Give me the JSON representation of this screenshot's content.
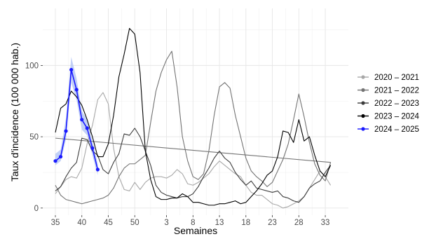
{
  "chart_data": {
    "type": "line",
    "xlabel": "Semaines",
    "ylabel": "Taux d'incidence (100 000 hab.)",
    "x_ticks": [
      "35",
      "40",
      "45",
      "50",
      "3",
      "8",
      "13",
      "18",
      "23",
      "28",
      "33"
    ],
    "y_ticks": [
      0,
      50,
      100
    ],
    "ylim": [
      -5,
      140
    ],
    "grid": true,
    "legend": "right",
    "series": [
      {
        "name": "2020 – 2021",
        "color": "#a8a8a8",
        "show_markers": false,
        "band": null,
        "values": [
          {
            "x": "35",
            "y": 10
          },
          {
            "x": "36",
            "y": 15
          },
          {
            "x": "37",
            "y": 20
          },
          {
            "x": "38",
            "y": 22
          },
          {
            "x": "39",
            "y": 21
          },
          {
            "x": "40",
            "y": 28
          },
          {
            "x": "41",
            "y": 45
          },
          {
            "x": "42",
            "y": 58
          },
          {
            "x": "43",
            "y": 76
          },
          {
            "x": "44",
            "y": 81
          },
          {
            "x": "45",
            "y": 73
          },
          {
            "x": "46",
            "y": 42
          },
          {
            "x": "47",
            "y": 22
          },
          {
            "x": "48",
            "y": 13
          },
          {
            "x": "49",
            "y": 12
          },
          {
            "x": "50",
            "y": 18
          },
          {
            "x": "51",
            "y": 13
          },
          {
            "x": "52",
            "y": 18
          },
          {
            "x": "53",
            "y": 21
          },
          {
            "x": "1",
            "y": 22
          },
          {
            "x": "2",
            "y": 22
          },
          {
            "x": "3",
            "y": 21
          },
          {
            "x": "4",
            "y": 23
          },
          {
            "x": "5",
            "y": 27
          },
          {
            "x": "6",
            "y": 24
          },
          {
            "x": "7",
            "y": 17
          },
          {
            "x": "8",
            "y": 16
          },
          {
            "x": "9",
            "y": 18
          },
          {
            "x": "10",
            "y": 21
          },
          {
            "x": "11",
            "y": 24
          },
          {
            "x": "12",
            "y": 29
          },
          {
            "x": "13",
            "y": 33
          },
          {
            "x": "14",
            "y": 30
          },
          {
            "x": "15",
            "y": 27
          },
          {
            "x": "16",
            "y": 24
          },
          {
            "x": "17",
            "y": 22
          },
          {
            "x": "18",
            "y": 16
          },
          {
            "x": "19",
            "y": 11
          },
          {
            "x": "20",
            "y": 9
          },
          {
            "x": "21",
            "y": 9
          },
          {
            "x": "22",
            "y": 6
          },
          {
            "x": "23",
            "y": 3
          },
          {
            "x": "24",
            "y": 2
          },
          {
            "x": "25",
            "y": 0
          },
          {
            "x": "26",
            "y": 1
          },
          {
            "x": "27",
            "y": 3
          },
          {
            "x": "28",
            "y": 5
          },
          {
            "x": "29",
            "y": 8
          },
          {
            "x": "30",
            "y": 14
          },
          {
            "x": "31",
            "y": 20
          },
          {
            "x": "32",
            "y": 26
          },
          {
            "x": "33",
            "y": 22
          },
          {
            "x": "34",
            "y": 16
          }
        ]
      },
      {
        "name": "2021 – 2022",
        "color": "#737373",
        "show_markers": false,
        "band": null,
        "values": [
          {
            "x": "35",
            "y": 16
          },
          {
            "x": "36",
            "y": 9
          },
          {
            "x": "37",
            "y": 6
          },
          {
            "x": "38",
            "y": 5
          },
          {
            "x": "39",
            "y": 4
          },
          {
            "x": "40",
            "y": 3
          },
          {
            "x": "41",
            "y": 4
          },
          {
            "x": "42",
            "y": 5
          },
          {
            "x": "43",
            "y": 6
          },
          {
            "x": "44",
            "y": 7
          },
          {
            "x": "45",
            "y": 9
          },
          {
            "x": "46",
            "y": 14
          },
          {
            "x": "47",
            "y": 22
          },
          {
            "x": "48",
            "y": 28
          },
          {
            "x": "49",
            "y": 31
          },
          {
            "x": "50",
            "y": 31
          },
          {
            "x": "51",
            "y": 34
          },
          {
            "x": "52",
            "y": 37
          },
          {
            "x": "53",
            "y": 60
          },
          {
            "x": "1",
            "y": 82
          },
          {
            "x": "2",
            "y": 95
          },
          {
            "x": "3",
            "y": 104
          },
          {
            "x": "4",
            "y": 110
          },
          {
            "x": "5",
            "y": 85
          },
          {
            "x": "6",
            "y": 50
          },
          {
            "x": "7",
            "y": 33
          },
          {
            "x": "8",
            "y": 22
          },
          {
            "x": "9",
            "y": 20
          },
          {
            "x": "10",
            "y": 24
          },
          {
            "x": "11",
            "y": 40
          },
          {
            "x": "12",
            "y": 65
          },
          {
            "x": "13",
            "y": 85
          },
          {
            "x": "14",
            "y": 88
          },
          {
            "x": "15",
            "y": 84
          },
          {
            "x": "16",
            "y": 65
          },
          {
            "x": "17",
            "y": 50
          },
          {
            "x": "18",
            "y": 35
          },
          {
            "x": "19",
            "y": 26
          },
          {
            "x": "20",
            "y": 22
          },
          {
            "x": "21",
            "y": 19
          },
          {
            "x": "22",
            "y": 15
          },
          {
            "x": "23",
            "y": 18
          },
          {
            "x": "24",
            "y": 26
          },
          {
            "x": "25",
            "y": 34
          },
          {
            "x": "26",
            "y": 45
          },
          {
            "x": "27",
            "y": 62
          },
          {
            "x": "28",
            "y": 80
          },
          {
            "x": "29",
            "y": 64
          },
          {
            "x": "30",
            "y": 46
          },
          {
            "x": "31",
            "y": 31
          },
          {
            "x": "32",
            "y": 23
          },
          {
            "x": "33",
            "y": 19
          },
          {
            "x": "34",
            "y": 32
          },
          {
            "x": "35",
            "y": 49
          }
        ]
      },
      {
        "name": "2022 – 2023",
        "color": "#3d3d3d",
        "show_markers": false,
        "band": null,
        "values": [
          {
            "x": "35",
            "y": 12
          },
          {
            "x": "36",
            "y": 15
          },
          {
            "x": "37",
            "y": 22
          },
          {
            "x": "38",
            "y": 28
          },
          {
            "x": "39",
            "y": 32
          },
          {
            "x": "40",
            "y": 49
          },
          {
            "x": "41",
            "y": 48
          },
          {
            "x": "42",
            "y": 40
          },
          {
            "x": "43",
            "y": 37
          },
          {
            "x": "44",
            "y": 27
          },
          {
            "x": "45",
            "y": 24
          },
          {
            "x": "46",
            "y": 32
          },
          {
            "x": "47",
            "y": 38
          },
          {
            "x": "48",
            "y": 52
          },
          {
            "x": "49",
            "y": 51
          },
          {
            "x": "50",
            "y": 56
          },
          {
            "x": "51",
            "y": 50
          },
          {
            "x": "52",
            "y": 40
          },
          {
            "x": "53",
            "y": 30
          },
          {
            "x": "1",
            "y": 16
          },
          {
            "x": "2",
            "y": 11
          },
          {
            "x": "3",
            "y": 9
          },
          {
            "x": "4",
            "y": 8
          },
          {
            "x": "5",
            "y": 7
          },
          {
            "x": "6",
            "y": 8
          },
          {
            "x": "7",
            "y": 8
          },
          {
            "x": "8",
            "y": 10
          },
          {
            "x": "9",
            "y": 15
          },
          {
            "x": "10",
            "y": 22
          },
          {
            "x": "11",
            "y": 28
          },
          {
            "x": "12",
            "y": 35
          },
          {
            "x": "13",
            "y": 40
          },
          {
            "x": "14",
            "y": 35
          },
          {
            "x": "15",
            "y": 32
          },
          {
            "x": "16",
            "y": 25
          },
          {
            "x": "17",
            "y": 20
          },
          {
            "x": "18",
            "y": 16
          },
          {
            "x": "19",
            "y": 19
          },
          {
            "x": "20",
            "y": 14
          },
          {
            "x": "21",
            "y": 13
          },
          {
            "x": "22",
            "y": 12
          },
          {
            "x": "23",
            "y": 11
          },
          {
            "x": "24",
            "y": 12
          },
          {
            "x": "25",
            "y": 8
          },
          {
            "x": "26",
            "y": 7
          },
          {
            "x": "27",
            "y": 5
          },
          {
            "x": "28",
            "y": 4
          },
          {
            "x": "29",
            "y": 8
          },
          {
            "x": "30",
            "y": 14
          },
          {
            "x": "31",
            "y": 17
          },
          {
            "x": "32",
            "y": 19
          },
          {
            "x": "33",
            "y": 25
          },
          {
            "x": "34",
            "y": 30
          }
        ]
      },
      {
        "name": "2023 – 2024",
        "color": "#000000",
        "show_markers": false,
        "band": null,
        "values": [
          {
            "x": "35",
            "y": 53
          },
          {
            "x": "36",
            "y": 70
          },
          {
            "x": "37",
            "y": 73
          },
          {
            "x": "38",
            "y": 82
          },
          {
            "x": "39",
            "y": 78
          },
          {
            "x": "40",
            "y": 72
          },
          {
            "x": "41",
            "y": 62
          },
          {
            "x": "42",
            "y": 50
          },
          {
            "x": "43",
            "y": 36
          },
          {
            "x": "44",
            "y": 36
          },
          {
            "x": "45",
            "y": 45
          },
          {
            "x": "46",
            "y": 65
          },
          {
            "x": "47",
            "y": 92
          },
          {
            "x": "48",
            "y": 108
          },
          {
            "x": "49",
            "y": 126
          },
          {
            "x": "50",
            "y": 122
          },
          {
            "x": "51",
            "y": 95
          },
          {
            "x": "52",
            "y": 40
          },
          {
            "x": "53",
            "y": 20
          },
          {
            "x": "1",
            "y": 8
          },
          {
            "x": "2",
            "y": 6
          },
          {
            "x": "3",
            "y": 6
          },
          {
            "x": "4",
            "y": 7
          },
          {
            "x": "5",
            "y": 7
          },
          {
            "x": "6",
            "y": 10
          },
          {
            "x": "7",
            "y": 8
          },
          {
            "x": "8",
            "y": 4
          },
          {
            "x": "9",
            "y": 4
          },
          {
            "x": "10",
            "y": 3
          },
          {
            "x": "11",
            "y": 2
          },
          {
            "x": "12",
            "y": 2
          },
          {
            "x": "13",
            "y": 3
          },
          {
            "x": "14",
            "y": 3
          },
          {
            "x": "15",
            "y": 4
          },
          {
            "x": "16",
            "y": 5
          },
          {
            "x": "17",
            "y": 3
          },
          {
            "x": "18",
            "y": 4
          },
          {
            "x": "19",
            "y": 8
          },
          {
            "x": "20",
            "y": 12
          },
          {
            "x": "21",
            "y": 17
          },
          {
            "x": "22",
            "y": 23
          },
          {
            "x": "23",
            "y": 26
          },
          {
            "x": "24",
            "y": 36
          },
          {
            "x": "25",
            "y": 54
          },
          {
            "x": "26",
            "y": 53
          },
          {
            "x": "27",
            "y": 46
          },
          {
            "x": "28",
            "y": 62
          },
          {
            "x": "29",
            "y": 47
          },
          {
            "x": "30",
            "y": 50
          },
          {
            "x": "31",
            "y": 37
          },
          {
            "x": "32",
            "y": 26
          },
          {
            "x": "33",
            "y": 22
          },
          {
            "x": "34",
            "y": 30
          }
        ]
      },
      {
        "name": "2024 – 2025",
        "color": "#1a1aff",
        "band_color": "#aec1f4",
        "show_markers": true,
        "values": [
          {
            "x": "35",
            "y": 33
          },
          {
            "x": "36",
            "y": 36
          },
          {
            "x": "37",
            "y": 54
          },
          {
            "x": "38",
            "y": 97
          },
          {
            "x": "39",
            "y": 83
          },
          {
            "x": "40",
            "y": 62
          },
          {
            "x": "41",
            "y": 56
          },
          {
            "x": "42",
            "y": 42
          },
          {
            "x": "43",
            "y": 27
          }
        ],
        "band": [
          {
            "x": "35",
            "lo": 30,
            "hi": 38
          },
          {
            "x": "36",
            "lo": 33,
            "hi": 41
          },
          {
            "x": "37",
            "lo": 48,
            "hi": 63
          },
          {
            "x": "38",
            "lo": 88,
            "hi": 106
          },
          {
            "x": "39",
            "lo": 76,
            "hi": 91
          },
          {
            "x": "40",
            "lo": 55,
            "hi": 68
          },
          {
            "x": "41",
            "lo": 51,
            "hi": 62
          },
          {
            "x": "42",
            "lo": 37,
            "hi": 47
          },
          {
            "x": "43",
            "lo": 23,
            "hi": 31
          }
        ]
      }
    ]
  }
}
